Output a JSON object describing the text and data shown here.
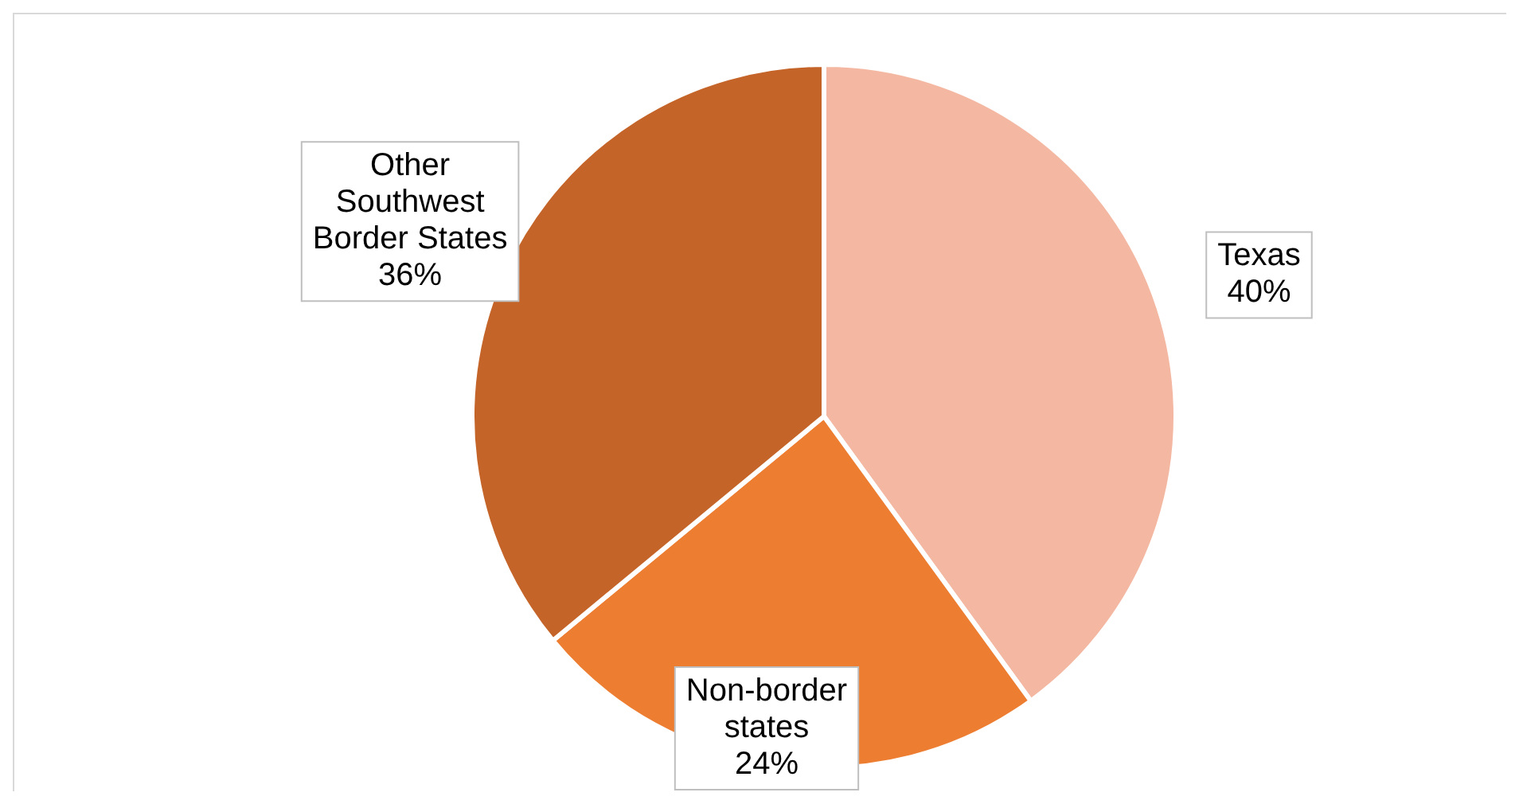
{
  "chart_data": {
    "type": "pie",
    "categories": [
      "Texas",
      "Non-border states",
      "Other Southwest Border States"
    ],
    "values": [
      40,
      24,
      36
    ],
    "value_labels": [
      "40%",
      "24%",
      "36%"
    ],
    "colors": [
      "#f4b8a2",
      "#ed7d31",
      "#c46428"
    ],
    "legend": false
  }
}
